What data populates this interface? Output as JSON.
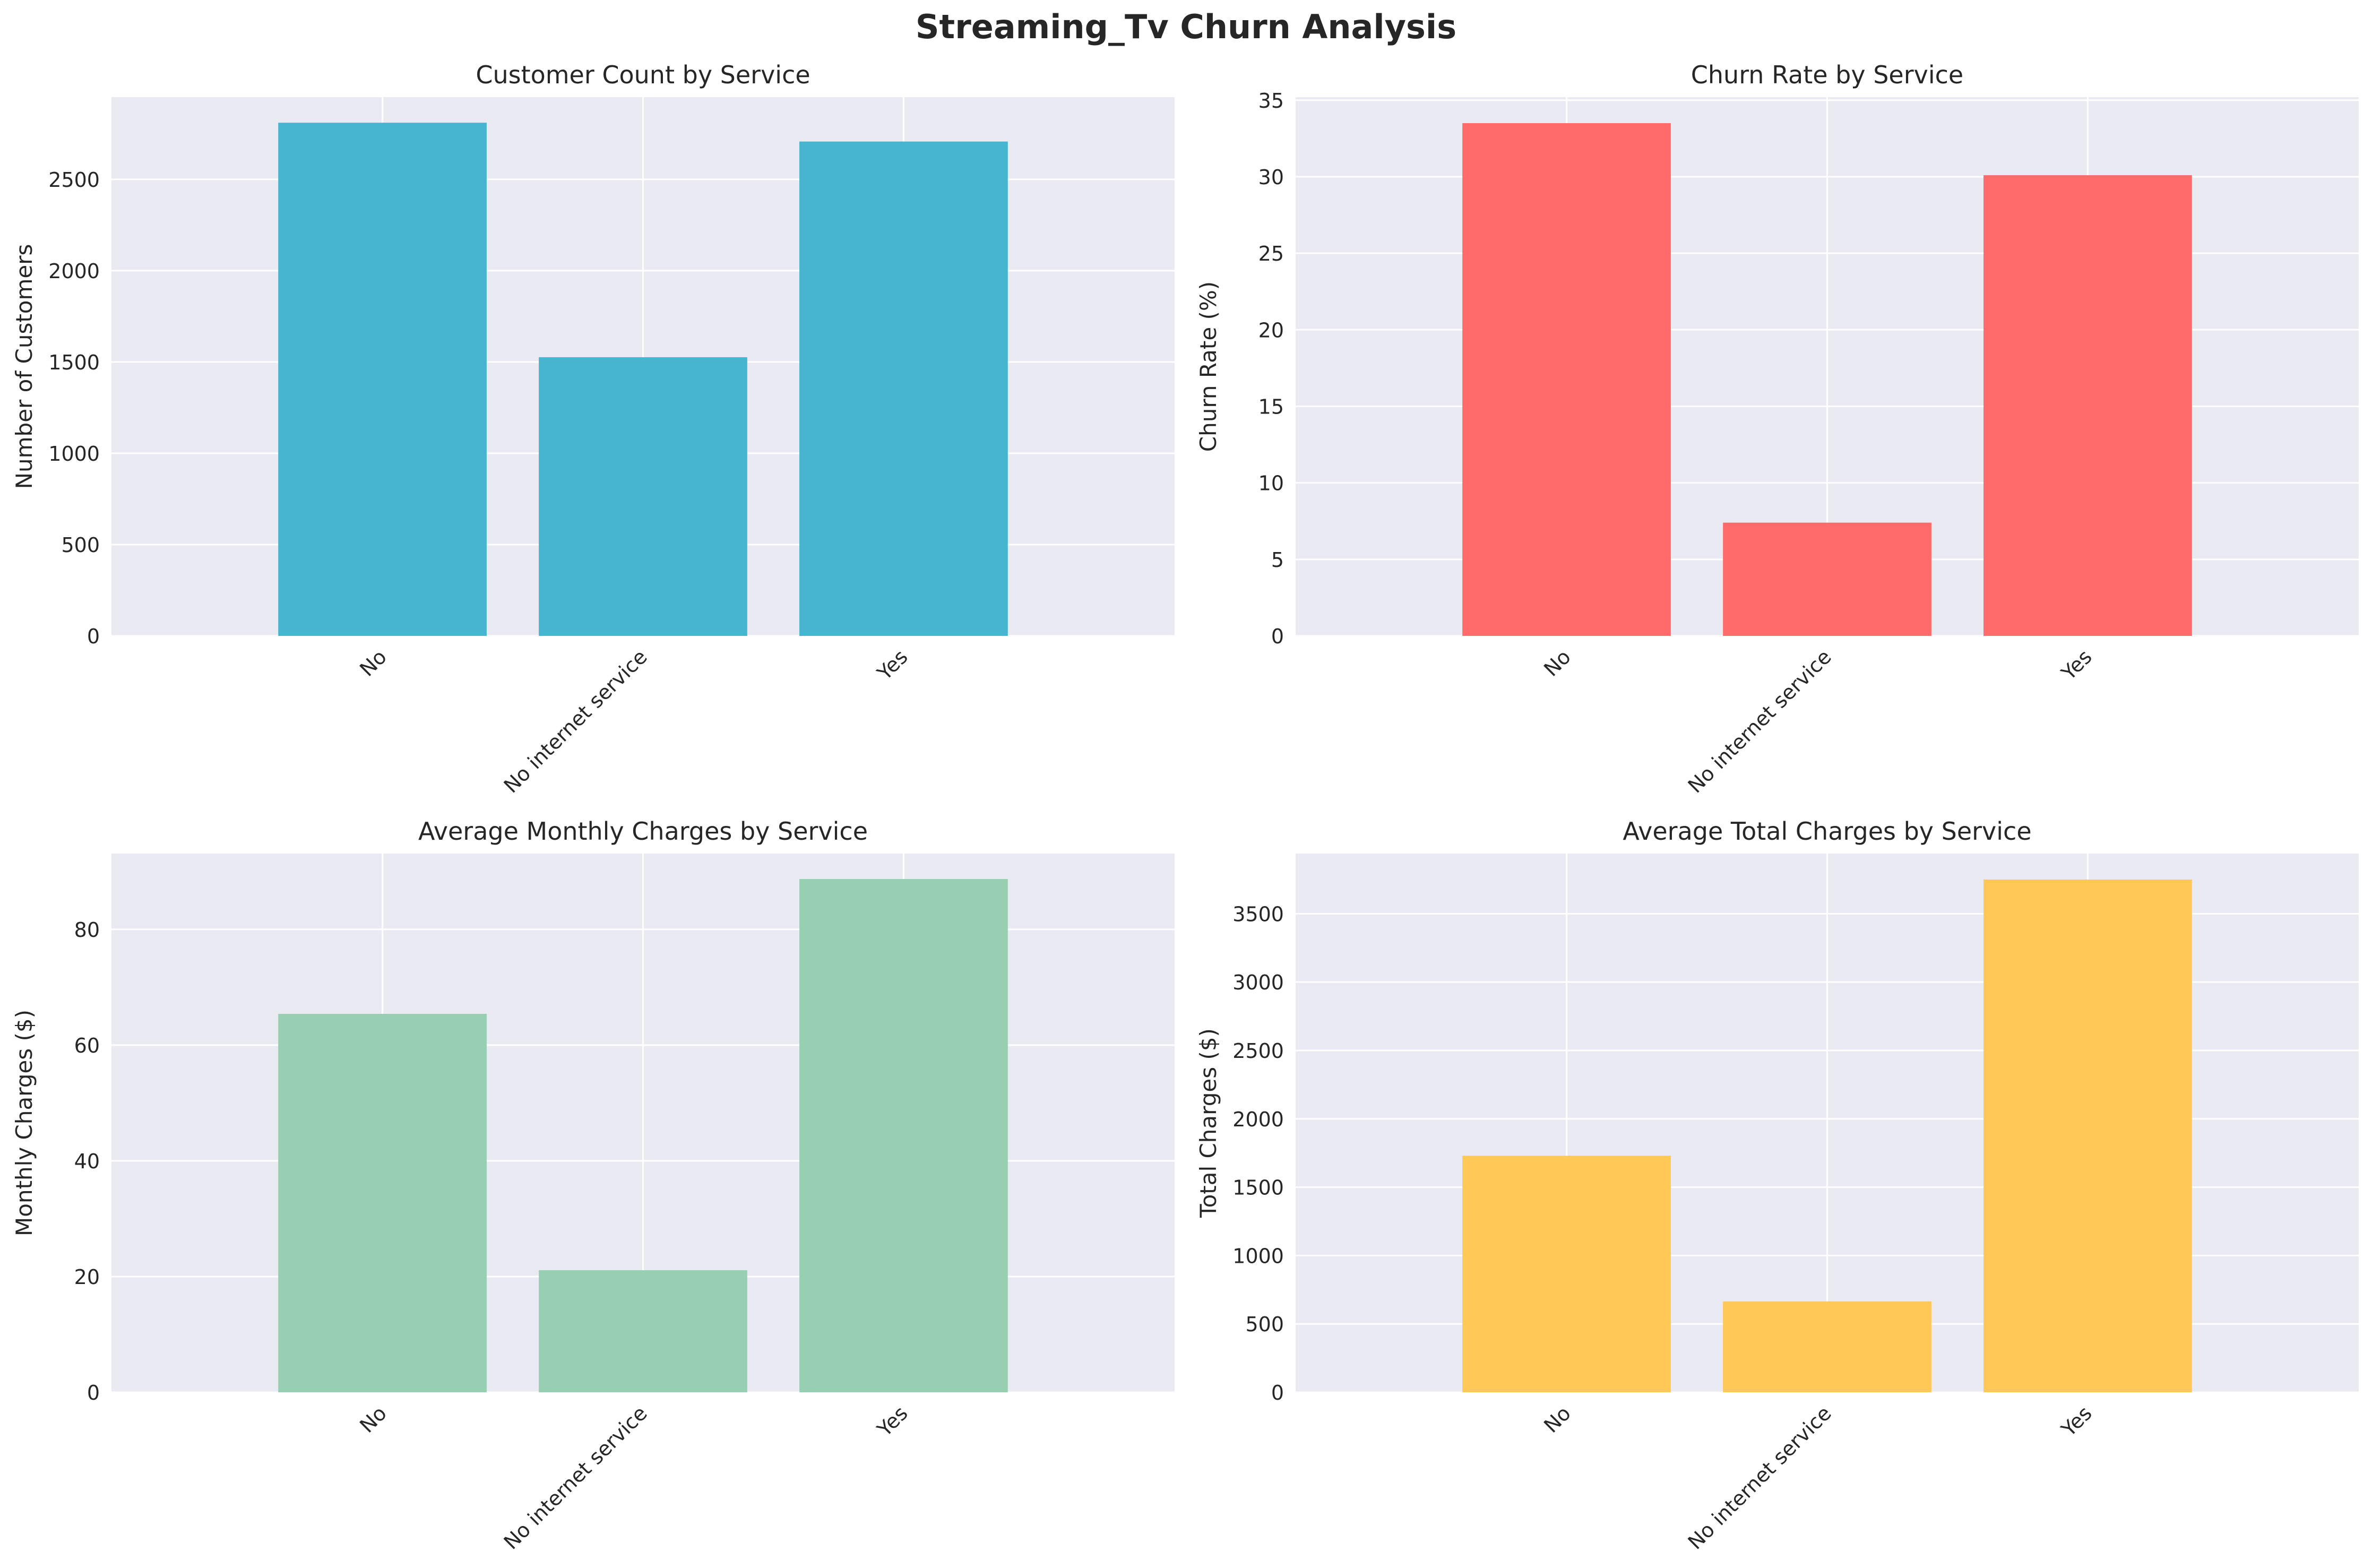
{
  "figure": {
    "suptitle": "Streaming_Tv Churn Analysis"
  },
  "chart_data": [
    {
      "type": "bar",
      "title": "Customer Count by Service",
      "xlabel": "",
      "ylabel": "Number of Customers",
      "categories": [
        "No",
        "No internet service",
        "Yes"
      ],
      "values": [
        2810,
        1526,
        2707
      ],
      "ylim": [
        0,
        2950
      ],
      "yticks": [
        0,
        500,
        1000,
        1500,
        2000,
        2500
      ],
      "color": "#48B5D0",
      "grid": true
    },
    {
      "type": "bar",
      "title": "Churn Rate by Service",
      "xlabel": "",
      "ylabel": "Churn Rate (%)",
      "categories": [
        "No",
        "No internet service",
        "Yes"
      ],
      "values": [
        33.5,
        7.4,
        30.1
      ],
      "ylim": [
        0,
        35.2
      ],
      "yticks": [
        0,
        5,
        10,
        15,
        20,
        25,
        30,
        35
      ],
      "color": "#FF6B6B",
      "grid": true
    },
    {
      "type": "bar",
      "title": "Average Monthly Charges by Service",
      "xlabel": "",
      "ylabel": "Monthly Charges ($)",
      "categories": [
        "No",
        "No internet service",
        "Yes"
      ],
      "values": [
        65.4,
        21.1,
        88.7
      ],
      "ylim": [
        0,
        93.1
      ],
      "yticks": [
        0,
        20,
        40,
        60,
        80
      ],
      "color": "#98CFB3",
      "grid": true
    },
    {
      "type": "bar",
      "title": "Average Total Charges by Service",
      "xlabel": "",
      "ylabel": "Total Charges ($)",
      "categories": [
        "No",
        "No internet service",
        "Yes"
      ],
      "values": [
        1730,
        665,
        3750
      ],
      "ylim": [
        0,
        3940
      ],
      "yticks": [
        0,
        500,
        1000,
        1500,
        2000,
        2500,
        3000,
        3500
      ],
      "color": "#FFC857",
      "grid": true
    }
  ]
}
